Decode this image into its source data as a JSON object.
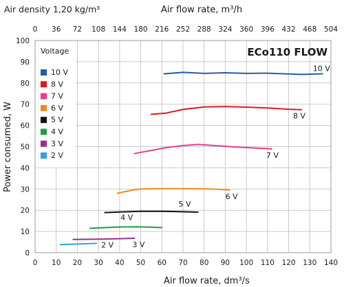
{
  "chart_data": {
    "type": "line",
    "title": "ECo110 FLOW",
    "density_label": "Air density 1,20 kg/m³",
    "xlabel": "Air flow rate, dm³/s",
    "xlabel_top": "Air flow rate, m³/h",
    "ylabel": "Power consumed, W",
    "xlim": [
      0,
      140
    ],
    "ylim": [
      0,
      100
    ],
    "xlim_top": [
      0,
      504
    ],
    "x_ticks": [
      0,
      10,
      20,
      30,
      40,
      50,
      60,
      70,
      80,
      90,
      100,
      110,
      120,
      130,
      140
    ],
    "y_ticks": [
      0,
      10,
      20,
      30,
      40,
      50,
      60,
      70,
      80,
      90,
      100
    ],
    "x_ticks_top": [
      0,
      36,
      72,
      108,
      144,
      180,
      216,
      252,
      288,
      324,
      360,
      396,
      432,
      468,
      504
    ],
    "grid": true,
    "legend_title": "Voltage",
    "legend_position": "top-left",
    "series": [
      {
        "name": "10 V",
        "label": "10 V",
        "color": "#1f5ea8",
        "x": [
          61,
          70,
          80,
          90,
          100,
          110,
          120,
          126,
          136
        ],
        "y": [
          84.3,
          85.0,
          84.5,
          84.8,
          84.5,
          84.6,
          84.2,
          84.0,
          84.3
        ]
      },
      {
        "name": "8 V",
        "label": "8 V",
        "color": "#e0161c",
        "x": [
          55,
          62,
          70,
          80,
          90,
          100,
          110,
          120,
          126
        ],
        "y": [
          65.2,
          65.8,
          67.5,
          68.7,
          68.9,
          68.6,
          68.2,
          67.6,
          67.4
        ]
      },
      {
        "name": "7 V",
        "label": "7 V",
        "color": "#ea3a8c",
        "x": [
          47,
          55,
          62,
          70,
          77,
          85,
          95,
          105,
          112
        ],
        "y": [
          46.7,
          48.2,
          49.5,
          50.5,
          51.0,
          50.5,
          49.8,
          49.3,
          48.9
        ]
      },
      {
        "name": "6 V",
        "label": "6 V",
        "color": "#ef8a1e",
        "x": [
          39,
          45,
          50,
          60,
          70,
          80,
          86,
          92
        ],
        "y": [
          28.0,
          29.3,
          30.0,
          30.2,
          30.2,
          30.1,
          29.9,
          29.5
        ]
      },
      {
        "name": "5 V",
        "label": "5 V",
        "color": "#111111",
        "x": [
          33,
          40,
          50,
          60,
          70,
          77
        ],
        "y": [
          18.9,
          19.2,
          19.5,
          19.5,
          19.3,
          19.1
        ]
      },
      {
        "name": "4 V",
        "label": "4 V",
        "color": "#229a45",
        "x": [
          26,
          33,
          40,
          48,
          55,
          60
        ],
        "y": [
          11.5,
          11.8,
          12.1,
          12.2,
          12.0,
          11.8
        ]
      },
      {
        "name": "3 V",
        "label": "3 V",
        "color": "#9c2d8c",
        "x": [
          18,
          25,
          32,
          40,
          47
        ],
        "y": [
          6.2,
          6.3,
          6.4,
          6.6,
          6.8
        ]
      },
      {
        "name": "2 V",
        "label": "2 V",
        "color": "#2ba4e0",
        "x": [
          12,
          18,
          24,
          29
        ],
        "y": [
          3.8,
          4.0,
          4.2,
          4.4
        ]
      }
    ]
  }
}
